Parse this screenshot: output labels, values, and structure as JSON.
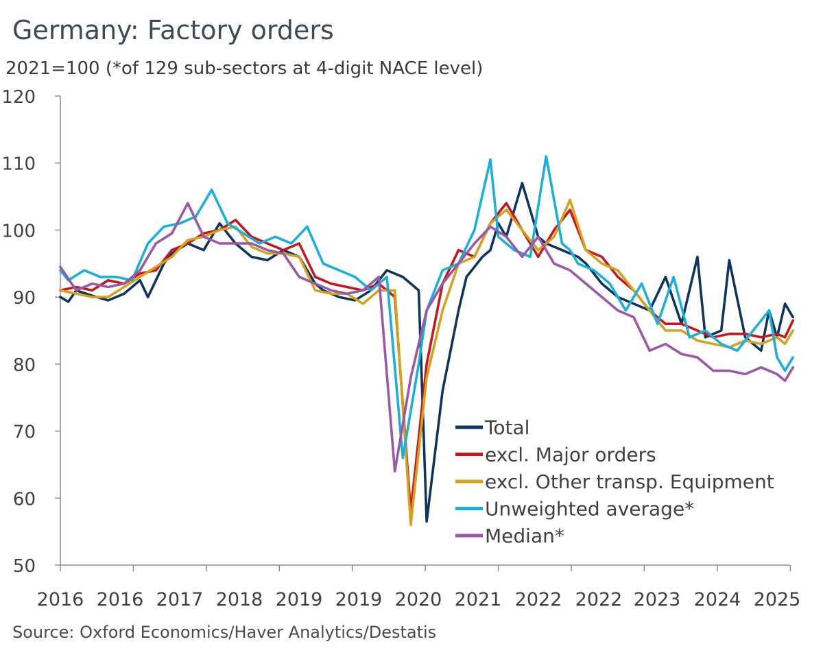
{
  "title": "Germany: Factory orders",
  "subtitle": "2021=100 (*of 129 sub-sectors at 4-digit NACE level)",
  "source": "Source: Oxford Economics/Haver Analytics/Destatis",
  "chart_data": {
    "type": "line",
    "title": "Germany: Factory orders",
    "subtitle": "2021=100 (*of 129 sub-sectors at 4-digit NACE level)",
    "xlabel": "",
    "ylabel": "",
    "ylim": [
      50,
      120
    ],
    "xlim": [
      2016.0,
      2025.2
    ],
    "y_ticks": [
      50,
      60,
      70,
      80,
      90,
      100,
      110,
      120
    ],
    "x_tick_values": [
      2016.0,
      2016.917,
      2017.833,
      2018.75,
      2019.667,
      2020.583,
      2021.5,
      2022.417,
      2023.333,
      2024.25,
      2025.167,
      2026.083
    ],
    "x_tick_labels": [
      "2016",
      "2016",
      "2017",
      "2018",
      "2019",
      "2019",
      "2020",
      "2021",
      "2022",
      "2022",
      "2023",
      "2024",
      "2025"
    ],
    "x_label_values": [
      2016.0,
      2016.917,
      2017.833,
      2018.75,
      2019.667,
      2020.583,
      2021.5,
      2022.417,
      2023.333,
      2024.25,
      2025.167,
      2026.083,
      2026.5
    ],
    "legend_position": "bottom-right",
    "grid": false,
    "series": [
      {
        "name": "Total",
        "color": "#0d3560",
        "x": [
          2016.0,
          2016.1,
          2016.2,
          2016.4,
          2016.6,
          2016.8,
          2017.0,
          2017.1,
          2017.3,
          2017.4,
          2017.6,
          2017.8,
          2017.9,
          2018.0,
          2018.2,
          2018.4,
          2018.6,
          2018.8,
          2019.0,
          2019.2,
          2019.3,
          2019.5,
          2019.7,
          2019.9,
          2020.1,
          2020.3,
          2020.5,
          2020.6,
          2020.8,
          2021.0,
          2021.1,
          2021.3,
          2021.4,
          2021.5,
          2021.6,
          2021.8,
          2022.0,
          2022.1,
          2022.3,
          2022.5,
          2022.6,
          2022.8,
          2023.0,
          2023.2,
          2023.4,
          2023.6,
          2023.8,
          2024.0,
          2024.1,
          2024.3,
          2024.4,
          2024.6,
          2024.8,
          2024.9,
          2025.0,
          2025.1,
          2025.2
        ],
        "values": [
          90,
          89.3,
          91,
          90.2,
          89.5,
          90.5,
          92.5,
          90,
          95,
          96.5,
          98,
          97,
          99,
          101,
          98,
          96,
          95.5,
          97,
          96,
          92,
          91,
          90,
          89.5,
          91,
          94,
          93,
          91,
          56.5,
          76,
          88,
          93,
          96,
          97,
          101,
          99,
          107,
          99,
          98,
          97,
          96,
          95,
          92,
          90,
          89,
          88,
          93,
          86,
          96,
          84,
          85,
          95.5,
          84,
          82,
          88,
          84,
          89,
          87
        ]
      },
      {
        "name": "excl. Major orders",
        "color": "#c8161d",
        "x": [
          2016.0,
          2016.2,
          2016.4,
          2016.6,
          2016.8,
          2017.0,
          2017.2,
          2017.4,
          2017.6,
          2017.8,
          2018.0,
          2018.2,
          2018.4,
          2018.6,
          2018.8,
          2019.0,
          2019.2,
          2019.4,
          2019.6,
          2019.8,
          2020.0,
          2020.2,
          2020.4,
          2020.6,
          2020.8,
          2021.0,
          2021.2,
          2021.4,
          2021.6,
          2021.8,
          2022.0,
          2022.2,
          2022.4,
          2022.6,
          2022.8,
          2023.0,
          2023.2,
          2023.4,
          2023.6,
          2023.8,
          2024.0,
          2024.2,
          2024.4,
          2024.6,
          2024.8,
          2025.0,
          2025.1,
          2025.2
        ],
        "values": [
          91,
          91.5,
          91,
          92.5,
          92,
          93.5,
          94,
          97,
          98,
          99.5,
          100,
          101.5,
          99,
          98,
          97,
          98,
          93,
          92,
          91.5,
          91,
          92,
          90,
          58,
          80,
          92,
          97,
          96,
          101,
          104,
          100,
          96,
          100,
          103,
          97,
          96,
          93,
          91,
          88,
          86,
          86,
          85,
          84,
          84.5,
          84.5,
          84,
          84.5,
          84,
          86.5
        ]
      },
      {
        "name": "excl. Other transp. Equipment",
        "color": "#d4a21d",
        "x": [
          2016.0,
          2016.2,
          2016.4,
          2016.6,
          2016.8,
          2017.0,
          2017.2,
          2017.4,
          2017.6,
          2017.8,
          2018.0,
          2018.2,
          2018.4,
          2018.6,
          2018.8,
          2019.0,
          2019.2,
          2019.4,
          2019.6,
          2019.8,
          2020.0,
          2020.2,
          2020.4,
          2020.6,
          2020.8,
          2021.0,
          2021.2,
          2021.4,
          2021.6,
          2021.8,
          2022.0,
          2022.2,
          2022.4,
          2022.6,
          2022.8,
          2023.0,
          2023.2,
          2023.4,
          2023.6,
          2023.8,
          2024.0,
          2024.2,
          2024.4,
          2024.6,
          2024.8,
          2025.0,
          2025.1,
          2025.2
        ],
        "values": [
          91,
          90.5,
          90,
          90,
          91.5,
          93,
          94.5,
          96,
          98.5,
          99,
          100,
          100.5,
          97.5,
          96.5,
          96.5,
          96,
          91,
          90.5,
          90.5,
          89,
          91,
          91,
          56,
          78,
          88,
          95,
          96,
          101,
          103,
          100,
          97,
          99,
          104.5,
          97,
          95,
          94,
          91,
          88,
          85,
          85,
          83.5,
          83,
          82.5,
          83.5,
          83,
          84,
          83,
          85
        ]
      },
      {
        "name": "Unweighted average*",
        "color": "#1ab0dc",
        "x": [
          2016.0,
          2016.1,
          2016.3,
          2016.5,
          2016.7,
          2016.9,
          2017.1,
          2017.3,
          2017.5,
          2017.7,
          2017.9,
          2018.1,
          2018.3,
          2018.5,
          2018.7,
          2018.9,
          2019.1,
          2019.3,
          2019.5,
          2019.7,
          2019.9,
          2020.1,
          2020.3,
          2020.5,
          2020.6,
          2020.8,
          2021.0,
          2021.2,
          2021.4,
          2021.5,
          2021.6,
          2021.7,
          2021.9,
          2022.1,
          2022.3,
          2022.4,
          2022.5,
          2022.7,
          2022.9,
          2023.1,
          2023.3,
          2023.5,
          2023.7,
          2023.9,
          2024.1,
          2024.3,
          2024.5,
          2024.7,
          2024.9,
          2025.0,
          2025.1,
          2025.2
        ],
        "values": [
          94,
          92.5,
          94,
          93,
          93,
          92.5,
          98,
          100.5,
          101,
          102,
          106,
          101,
          99.5,
          98,
          99,
          98,
          100.5,
          95,
          94,
          93,
          91,
          93,
          66,
          80,
          88,
          94,
          95,
          100,
          110.5,
          99,
          98,
          97,
          96,
          111,
          98,
          97,
          95,
          94,
          92,
          88,
          92,
          86,
          93,
          84,
          85,
          83,
          82,
          85,
          88,
          81,
          79,
          81
        ]
      },
      {
        "name": "Median*",
        "color": "#9b58a5",
        "x": [
          2016.0,
          2016.2,
          2016.4,
          2016.6,
          2016.8,
          2017.0,
          2017.2,
          2017.4,
          2017.6,
          2017.8,
          2018.0,
          2018.2,
          2018.4,
          2018.6,
          2018.8,
          2019.0,
          2019.2,
          2019.4,
          2019.6,
          2019.8,
          2020.0,
          2020.2,
          2020.4,
          2020.6,
          2020.8,
          2021.0,
          2021.2,
          2021.4,
          2021.6,
          2021.8,
          2022.0,
          2022.2,
          2022.4,
          2022.6,
          2022.8,
          2023.0,
          2023.2,
          2023.4,
          2023.6,
          2023.8,
          2024.0,
          2024.2,
          2024.4,
          2024.6,
          2024.8,
          2025.0,
          2025.1,
          2025.2
        ],
        "values": [
          94.5,
          91,
          92,
          91.5,
          92,
          94,
          98,
          99.5,
          104,
          99,
          98,
          98,
          98,
          97,
          96.5,
          93,
          92,
          91,
          90.5,
          91,
          93,
          64,
          78,
          88,
          92,
          95,
          98,
          100.5,
          99,
          96,
          99,
          95,
          94,
          92,
          90,
          88,
          87,
          82,
          83,
          81.5,
          81,
          79,
          79,
          78.5,
          79.5,
          78.5,
          77.5,
          79.5
        ]
      }
    ]
  }
}
